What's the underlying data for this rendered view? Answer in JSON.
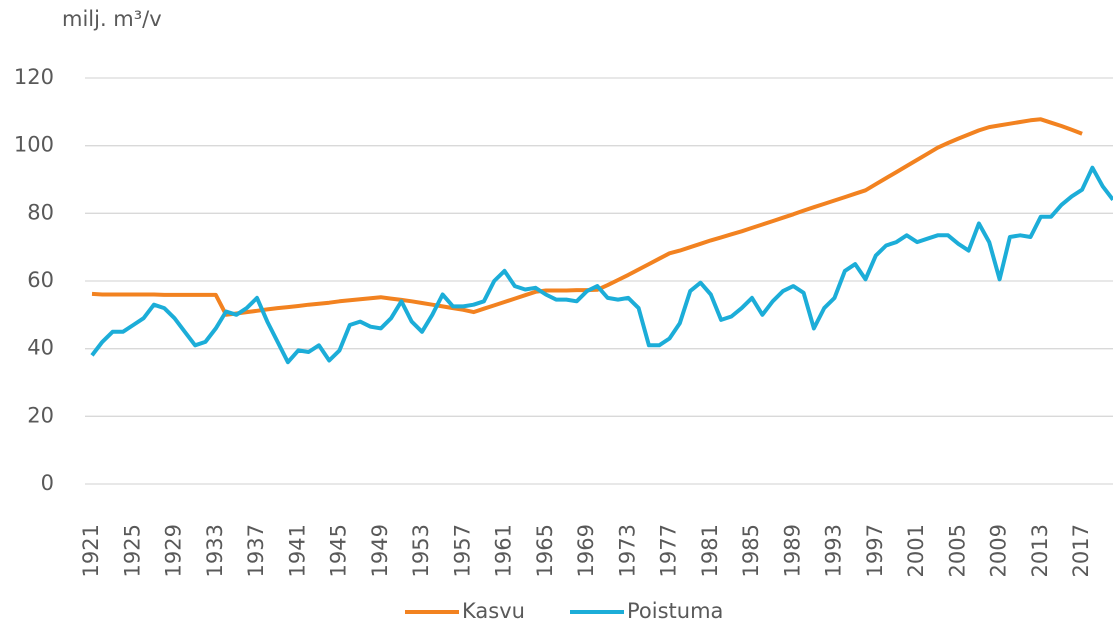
{
  "chart_data": {
    "type": "line",
    "y_axis_label": "milj. m³/v",
    "x": [
      1921,
      1922,
      1923,
      1924,
      1925,
      1926,
      1927,
      1928,
      1929,
      1930,
      1931,
      1932,
      1933,
      1934,
      1935,
      1936,
      1937,
      1938,
      1939,
      1940,
      1941,
      1942,
      1943,
      1944,
      1945,
      1946,
      1947,
      1948,
      1949,
      1950,
      1951,
      1952,
      1953,
      1954,
      1955,
      1956,
      1957,
      1958,
      1959,
      1960,
      1961,
      1962,
      1963,
      1964,
      1965,
      1966,
      1967,
      1968,
      1969,
      1970,
      1971,
      1972,
      1973,
      1974,
      1975,
      1976,
      1977,
      1978,
      1979,
      1980,
      1981,
      1982,
      1983,
      1984,
      1985,
      1986,
      1987,
      1988,
      1989,
      1990,
      1991,
      1992,
      1993,
      1994,
      1995,
      1996,
      1997,
      1998,
      1999,
      2000,
      2001,
      2002,
      2003,
      2004,
      2005,
      2006,
      2007,
      2008,
      2009,
      2010,
      2011,
      2012,
      2013,
      2014,
      2015,
      2016,
      2017,
      2018,
      2019,
      2020
    ],
    "xlim": [
      1921,
      2020
    ],
    "xticks": [
      1921,
      1925,
      1929,
      1933,
      1937,
      1941,
      1945,
      1949,
      1953,
      1957,
      1961,
      1965,
      1969,
      1973,
      1977,
      1981,
      1985,
      1989,
      1993,
      1997,
      2001,
      2005,
      2009,
      2013,
      2017
    ],
    "ylim": [
      0,
      120
    ],
    "yticks": [
      0,
      20,
      40,
      60,
      80,
      100,
      120
    ],
    "grid": true,
    "legend": "bottom",
    "series": [
      {
        "name": "Kasvu",
        "color": "#f28220",
        "values": [
          56.2,
          56,
          56,
          56,
          56,
          56,
          56,
          55.9,
          55.9,
          55.9,
          55.9,
          55.9,
          55.9,
          50,
          50.4,
          50.8,
          51.2,
          51.6,
          52,
          52.3,
          52.6,
          53,
          53.3,
          53.6,
          54,
          54.3,
          54.6,
          54.9,
          55.2,
          54.8,
          54.4,
          54,
          53.5,
          53,
          52.5,
          52,
          51.5,
          50.8,
          51.8,
          52.8,
          53.8,
          54.8,
          55.8,
          56.8,
          57.2,
          57.2,
          57.2,
          57.3,
          57.3,
          57.4,
          58.8,
          60.3,
          61.8,
          63.4,
          65,
          66.6,
          68.2,
          69,
          70,
          71,
          72,
          72.9,
          73.8,
          74.7,
          75.7,
          76.7,
          77.7,
          78.7,
          79.7,
          80.8,
          81.8,
          82.8,
          83.8,
          84.8,
          85.8,
          86.8,
          88.6,
          90.4,
          92.2,
          94,
          95.8,
          97.6,
          99.4,
          100.8,
          102.1,
          103.3,
          104.5,
          105.5,
          106,
          106.5,
          107,
          107.5,
          107.8,
          106.8,
          105.8,
          104.7,
          103.5,
          null,
          null,
          null
        ]
      },
      {
        "name": "Poistuma",
        "color": "#1cadd8",
        "values": [
          38,
          42,
          45,
          45,
          47,
          49,
          53,
          52,
          49,
          45,
          41,
          42,
          46,
          51,
          50,
          52,
          55,
          48,
          42,
          36,
          39.5,
          39,
          41,
          36.5,
          39.5,
          47,
          48,
          46.5,
          46,
          49,
          54,
          48,
          45,
          50,
          56,
          52.5,
          52.5,
          53,
          54,
          60,
          63,
          58.5,
          57.5,
          58,
          56,
          54.5,
          54.5,
          54,
          57,
          58.5,
          55,
          54.5,
          55,
          52,
          41,
          41,
          43,
          47.5,
          57,
          59.5,
          56,
          48.5,
          49.5,
          52,
          55,
          50,
          54,
          57,
          58.5,
          56.5,
          46,
          52,
          55,
          63,
          65,
          60.5,
          67.5,
          70.5,
          71.5,
          73.5,
          71.5,
          72.5,
          73.5,
          73.5,
          71,
          69,
          77,
          71.5,
          60.5,
          73,
          73.5,
          73,
          79,
          79,
          82.5,
          85,
          87,
          93.5,
          88,
          84
        ]
      }
    ]
  }
}
